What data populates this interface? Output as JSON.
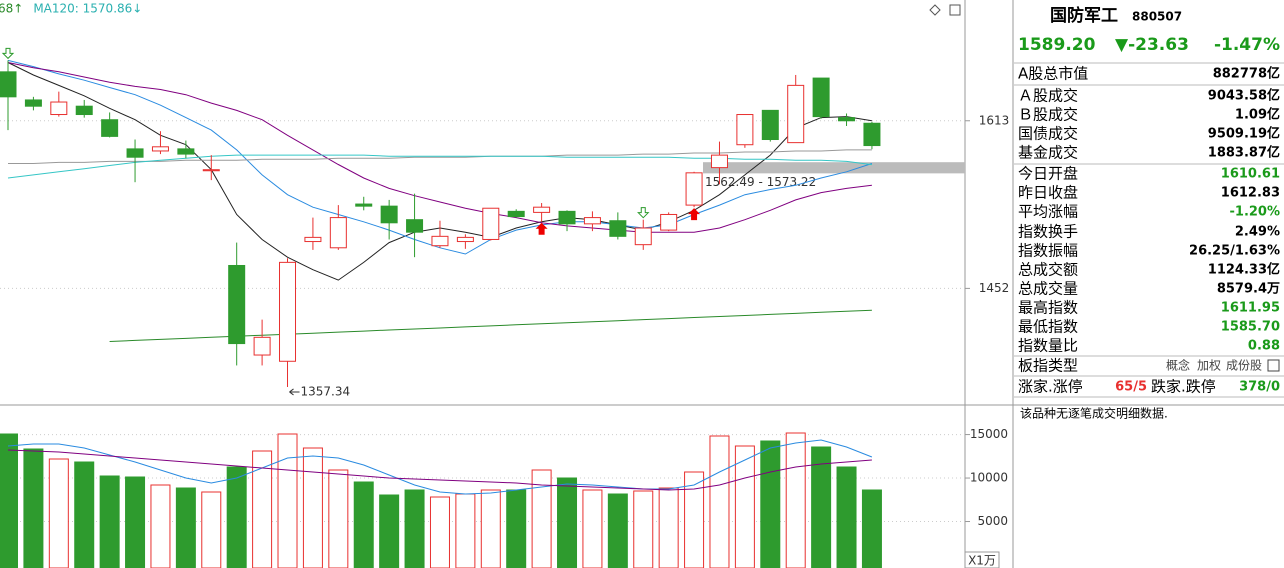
{
  "chart_data": [
    {
      "type": "candlestick",
      "open": [
        1660,
        1633,
        1619,
        1627,
        1614,
        1586,
        1584,
        1586,
        1565,
        1474,
        1388,
        1382,
        1497,
        1491,
        1533,
        1531,
        1518,
        1493,
        1497,
        1499,
        1526,
        1525,
        1526,
        1514,
        1517,
        1494,
        1508,
        1532,
        1568,
        1590,
        1623,
        1592,
        1654,
        1616,
        1610.61
      ],
      "high": [
        1671,
        1636,
        1641,
        1633,
        1621,
        1595,
        1603,
        1594,
        1580,
        1496,
        1422,
        1481,
        1520,
        1532,
        1540,
        1537,
        1543,
        1517,
        1504,
        1529,
        1528,
        1534,
        1527,
        1526,
        1525,
        1518,
        1525,
        1564,
        1593,
        1619,
        1623,
        1657,
        1654,
        1620,
        1611.95
      ],
      "low": [
        1604,
        1623,
        1617,
        1616,
        1597,
        1554,
        1581,
        1577,
        1556,
        1378,
        1378,
        1357.34,
        1489,
        1489,
        1527,
        1499,
        1482,
        1491,
        1490,
        1498,
        1520,
        1516,
        1507,
        1507,
        1499,
        1489,
        1507,
        1530,
        1552,
        1587,
        1593,
        1592,
        1615,
        1608,
        1585.7
      ],
      "close": [
        1636,
        1627,
        1631,
        1619,
        1598,
        1578,
        1588,
        1581,
        1566,
        1399,
        1405,
        1477,
        1501,
        1520,
        1531,
        1515,
        1506,
        1502,
        1501,
        1529,
        1521,
        1530,
        1514,
        1520,
        1502,
        1510,
        1523,
        1563,
        1580,
        1619,
        1595,
        1647,
        1617,
        1613,
        1589.2
      ],
      "up_color": "#e8302f",
      "down_color": "#2e9b2e",
      "lines": [
        {
          "color": "#222222",
          "values": [
            1669,
            1657,
            1647,
            1637,
            1625,
            1614,
            1599,
            1590,
            1566,
            1523,
            1499,
            1482,
            1470,
            1460,
            1477,
            1496,
            1506,
            1510,
            1506,
            1501,
            1510,
            1516,
            1520,
            1518,
            1513,
            1508,
            1516,
            1527,
            1542,
            1561,
            1580,
            1606,
            1616,
            1617,
            1613
          ]
        },
        {
          "color": "#2a8be0",
          "values": [
            1671,
            1665,
            1658,
            1652,
            1645,
            1638,
            1628,
            1616,
            1604,
            1585,
            1561,
            1542,
            1530,
            1523,
            1516,
            1508,
            1499,
            1491,
            1485,
            1499,
            1508,
            1513,
            1516,
            1516,
            1513,
            1510,
            1513,
            1523,
            1532,
            1542,
            1547,
            1551,
            1558,
            1564,
            1572
          ]
        },
        {
          "color": "#800080",
          "values": [
            1669,
            1664,
            1660,
            1655,
            1650,
            1646,
            1643,
            1638,
            1630,
            1623,
            1614,
            1599,
            1585,
            1571,
            1558,
            1548,
            1541,
            1535,
            1529,
            1524,
            1520,
            1515,
            1512,
            1510,
            1508,
            1506,
            1506,
            1506,
            1510,
            1518,
            1527,
            1537,
            1544,
            1548,
            1551
          ]
        },
        {
          "color": "#999999",
          "values": [
            1572,
            1572,
            1573,
            1573,
            1574,
            1574,
            1574,
            1575,
            1575,
            1575,
            1576,
            1576,
            1576,
            1577,
            1577,
            1577,
            1578,
            1578,
            1578,
            1579,
            1579,
            1579,
            1580,
            1580,
            1580,
            1581,
            1581,
            1582,
            1582,
            1583,
            1583,
            1584,
            1584,
            1585,
            1585
          ]
        },
        {
          "name": "MA120",
          "color": "#35c6c6",
          "values": [
            1558,
            1561,
            1564,
            1567,
            1570,
            1573,
            1575,
            1577,
            1579,
            1580,
            1580,
            1580,
            1580,
            1580,
            1580,
            1579,
            1579,
            1579,
            1579,
            1579,
            1579,
            1579,
            1578,
            1578,
            1578,
            1578,
            1578,
            1577,
            1577,
            1576,
            1576,
            1575,
            1575,
            1574,
            1570.86
          ]
        },
        {
          "color": "#2a8a2a",
          "values": [
            null,
            null,
            null,
            null,
            1401,
            1402,
            1403,
            1404,
            1405,
            1406,
            1407,
            1408,
            1409,
            1410,
            1411,
            1412,
            1413,
            1414,
            1415,
            1416,
            1417,
            1418,
            1419,
            1420,
            1421,
            1422,
            1423,
            1424,
            1425,
            1426,
            1427,
            1428,
            1429,
            1430,
            1431
          ]
        }
      ],
      "legend": [
        {
          "text": "68↑",
          "color": "#2a8a2a"
        },
        {
          "text": "MA120: 1570.86↓",
          "color": "#2ab0b0"
        }
      ],
      "ylim": [
        1340,
        1729
      ],
      "yticks": [
        1452,
        1613
      ],
      "grid": true,
      "gap": [
        1562.49,
        1573.22
      ],
      "gap_label": "1562.49 - 1573.22",
      "low_label": "1357.34"
    },
    {
      "type": "bar",
      "values": [
        15065,
        13340,
        12190,
        11845,
        10235,
        10120,
        9200,
        8855,
        8395,
        11270,
        13110,
        15065,
        13455,
        10925,
        9545,
        8050,
        8625,
        7820,
        8165,
        8625,
        8625,
        10925,
        10005,
        8625,
        8165,
        8510,
        8855,
        10695,
        14835,
        13685,
        14260,
        15180,
        13570,
        11270,
        8625
      ],
      "lines": [
        {
          "color": "#2a8be0",
          "values": [
            13685,
            13915,
            13915,
            13455,
            12650,
            11845,
            10925,
            10005,
            9430,
            10005,
            11155,
            12305,
            12535,
            12305,
            11500,
            10350,
            9200,
            8395,
            8165,
            8280,
            8625,
            8970,
            9315,
            9200,
            8970,
            8740,
            8740,
            9200,
            10695,
            12075,
            13455,
            14030,
            14375,
            13570,
            12420
          ]
        },
        {
          "color": "#800080",
          "values": [
            13225,
            13110,
            12995,
            12765,
            12535,
            12305,
            12075,
            11845,
            11615,
            11385,
            11155,
            10925,
            10695,
            10465,
            10235,
            10005,
            9890,
            9775,
            9660,
            9545,
            9430,
            9200,
            9085,
            8970,
            8855,
            8740,
            8625,
            8740,
            9200,
            10005,
            10695,
            11270,
            11615,
            11845,
            12075
          ]
        }
      ],
      "ylim": [
        0,
        18400
      ],
      "yticks": [
        5000,
        10000,
        15000
      ],
      "grid": true,
      "unit": "X1万"
    }
  ],
  "panel": {
    "name": "国防军工",
    "code": "880507",
    "price": "1589.20",
    "change": "▼-23.63",
    "change_pct": "-1.47%",
    "price_color": "#1a9a1a",
    "rows": [
      {
        "label": "A股总市值",
        "value": "882778亿",
        "color": "#000000"
      },
      {
        "label": "Ａ股成交",
        "value": "9043.58亿",
        "color": "#000000"
      },
      {
        "label": "Ｂ股成交",
        "value": "1.09亿",
        "color": "#000000"
      },
      {
        "label": "国债成交",
        "value": "9509.19亿",
        "color": "#000000"
      },
      {
        "label": "基金成交",
        "value": "1883.87亿",
        "color": "#000000"
      },
      {
        "label": "今日开盘",
        "value": "1610.61",
        "color": "#1a9a1a"
      },
      {
        "label": "昨日收盘",
        "value": "1612.83",
        "color": "#000000"
      },
      {
        "label": "平均涨幅",
        "value": "-1.20%",
        "color": "#1a9a1a"
      },
      {
        "label": "指数换手",
        "value": "2.49%",
        "color": "#000000"
      },
      {
        "label": "指数振幅",
        "value": "26.25/1.63%",
        "color": "#000000"
      },
      {
        "label": "总成交额",
        "value": "1124.33亿",
        "color": "#000000"
      },
      {
        "label": "总成交量",
        "value": "8579.4万",
        "color": "#000000"
      },
      {
        "label": "最高指数",
        "value": "1611.95",
        "color": "#1a9a1a"
      },
      {
        "label": "最低指数",
        "value": "1585.70",
        "color": "#1a9a1a"
      },
      {
        "label": "指数量比",
        "value": "0.88",
        "color": "#1a9a1a"
      }
    ],
    "board_type": {
      "label": "板指类型",
      "options": [
        "概念",
        "加权",
        "成份股"
      ]
    },
    "breadth": {
      "up_label": "涨家.涨停",
      "up_value": "65/5",
      "down_label": "跌家.跌停",
      "down_value": "378/0"
    },
    "notice": "该品种无逐笔成交明细数据."
  }
}
